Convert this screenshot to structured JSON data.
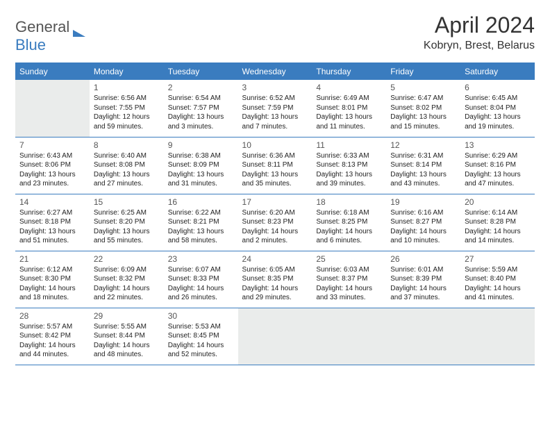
{
  "colors": {
    "accent": "#3a7cbf",
    "border": "#3a7cbf",
    "empty": "#eaeceb",
    "text": "#222"
  },
  "logo": {
    "part1": "General",
    "part2": "Blue"
  },
  "title": "April 2024",
  "subtitle": "Kobryn, Brest, Belarus",
  "weekdays": [
    "Sunday",
    "Monday",
    "Tuesday",
    "Wednesday",
    "Thursday",
    "Friday",
    "Saturday"
  ],
  "days": {
    "1": {
      "sunrise": "Sunrise: 6:56 AM",
      "sunset": "Sunset: 7:55 PM",
      "day1": "Daylight: 12 hours",
      "day2": "and 59 minutes."
    },
    "2": {
      "sunrise": "Sunrise: 6:54 AM",
      "sunset": "Sunset: 7:57 PM",
      "day1": "Daylight: 13 hours",
      "day2": "and 3 minutes."
    },
    "3": {
      "sunrise": "Sunrise: 6:52 AM",
      "sunset": "Sunset: 7:59 PM",
      "day1": "Daylight: 13 hours",
      "day2": "and 7 minutes."
    },
    "4": {
      "sunrise": "Sunrise: 6:49 AM",
      "sunset": "Sunset: 8:01 PM",
      "day1": "Daylight: 13 hours",
      "day2": "and 11 minutes."
    },
    "5": {
      "sunrise": "Sunrise: 6:47 AM",
      "sunset": "Sunset: 8:02 PM",
      "day1": "Daylight: 13 hours",
      "day2": "and 15 minutes."
    },
    "6": {
      "sunrise": "Sunrise: 6:45 AM",
      "sunset": "Sunset: 8:04 PM",
      "day1": "Daylight: 13 hours",
      "day2": "and 19 minutes."
    },
    "7": {
      "sunrise": "Sunrise: 6:43 AM",
      "sunset": "Sunset: 8:06 PM",
      "day1": "Daylight: 13 hours",
      "day2": "and 23 minutes."
    },
    "8": {
      "sunrise": "Sunrise: 6:40 AM",
      "sunset": "Sunset: 8:08 PM",
      "day1": "Daylight: 13 hours",
      "day2": "and 27 minutes."
    },
    "9": {
      "sunrise": "Sunrise: 6:38 AM",
      "sunset": "Sunset: 8:09 PM",
      "day1": "Daylight: 13 hours",
      "day2": "and 31 minutes."
    },
    "10": {
      "sunrise": "Sunrise: 6:36 AM",
      "sunset": "Sunset: 8:11 PM",
      "day1": "Daylight: 13 hours",
      "day2": "and 35 minutes."
    },
    "11": {
      "sunrise": "Sunrise: 6:33 AM",
      "sunset": "Sunset: 8:13 PM",
      "day1": "Daylight: 13 hours",
      "day2": "and 39 minutes."
    },
    "12": {
      "sunrise": "Sunrise: 6:31 AM",
      "sunset": "Sunset: 8:14 PM",
      "day1": "Daylight: 13 hours",
      "day2": "and 43 minutes."
    },
    "13": {
      "sunrise": "Sunrise: 6:29 AM",
      "sunset": "Sunset: 8:16 PM",
      "day1": "Daylight: 13 hours",
      "day2": "and 47 minutes."
    },
    "14": {
      "sunrise": "Sunrise: 6:27 AM",
      "sunset": "Sunset: 8:18 PM",
      "day1": "Daylight: 13 hours",
      "day2": "and 51 minutes."
    },
    "15": {
      "sunrise": "Sunrise: 6:25 AM",
      "sunset": "Sunset: 8:20 PM",
      "day1": "Daylight: 13 hours",
      "day2": "and 55 minutes."
    },
    "16": {
      "sunrise": "Sunrise: 6:22 AM",
      "sunset": "Sunset: 8:21 PM",
      "day1": "Daylight: 13 hours",
      "day2": "and 58 minutes."
    },
    "17": {
      "sunrise": "Sunrise: 6:20 AM",
      "sunset": "Sunset: 8:23 PM",
      "day1": "Daylight: 14 hours",
      "day2": "and 2 minutes."
    },
    "18": {
      "sunrise": "Sunrise: 6:18 AM",
      "sunset": "Sunset: 8:25 PM",
      "day1": "Daylight: 14 hours",
      "day2": "and 6 minutes."
    },
    "19": {
      "sunrise": "Sunrise: 6:16 AM",
      "sunset": "Sunset: 8:27 PM",
      "day1": "Daylight: 14 hours",
      "day2": "and 10 minutes."
    },
    "20": {
      "sunrise": "Sunrise: 6:14 AM",
      "sunset": "Sunset: 8:28 PM",
      "day1": "Daylight: 14 hours",
      "day2": "and 14 minutes."
    },
    "21": {
      "sunrise": "Sunrise: 6:12 AM",
      "sunset": "Sunset: 8:30 PM",
      "day1": "Daylight: 14 hours",
      "day2": "and 18 minutes."
    },
    "22": {
      "sunrise": "Sunrise: 6:09 AM",
      "sunset": "Sunset: 8:32 PM",
      "day1": "Daylight: 14 hours",
      "day2": "and 22 minutes."
    },
    "23": {
      "sunrise": "Sunrise: 6:07 AM",
      "sunset": "Sunset: 8:33 PM",
      "day1": "Daylight: 14 hours",
      "day2": "and 26 minutes."
    },
    "24": {
      "sunrise": "Sunrise: 6:05 AM",
      "sunset": "Sunset: 8:35 PM",
      "day1": "Daylight: 14 hours",
      "day2": "and 29 minutes."
    },
    "25": {
      "sunrise": "Sunrise: 6:03 AM",
      "sunset": "Sunset: 8:37 PM",
      "day1": "Daylight: 14 hours",
      "day2": "and 33 minutes."
    },
    "26": {
      "sunrise": "Sunrise: 6:01 AM",
      "sunset": "Sunset: 8:39 PM",
      "day1": "Daylight: 14 hours",
      "day2": "and 37 minutes."
    },
    "27": {
      "sunrise": "Sunrise: 5:59 AM",
      "sunset": "Sunset: 8:40 PM",
      "day1": "Daylight: 14 hours",
      "day2": "and 41 minutes."
    },
    "28": {
      "sunrise": "Sunrise: 5:57 AM",
      "sunset": "Sunset: 8:42 PM",
      "day1": "Daylight: 14 hours",
      "day2": "and 44 minutes."
    },
    "29": {
      "sunrise": "Sunrise: 5:55 AM",
      "sunset": "Sunset: 8:44 PM",
      "day1": "Daylight: 14 hours",
      "day2": "and 48 minutes."
    },
    "30": {
      "sunrise": "Sunrise: 5:53 AM",
      "sunset": "Sunset: 8:45 PM",
      "day1": "Daylight: 14 hours",
      "day2": "and 52 minutes."
    }
  },
  "layout": {
    "firstDayOffset": 1,
    "daysInMonth": 30
  }
}
